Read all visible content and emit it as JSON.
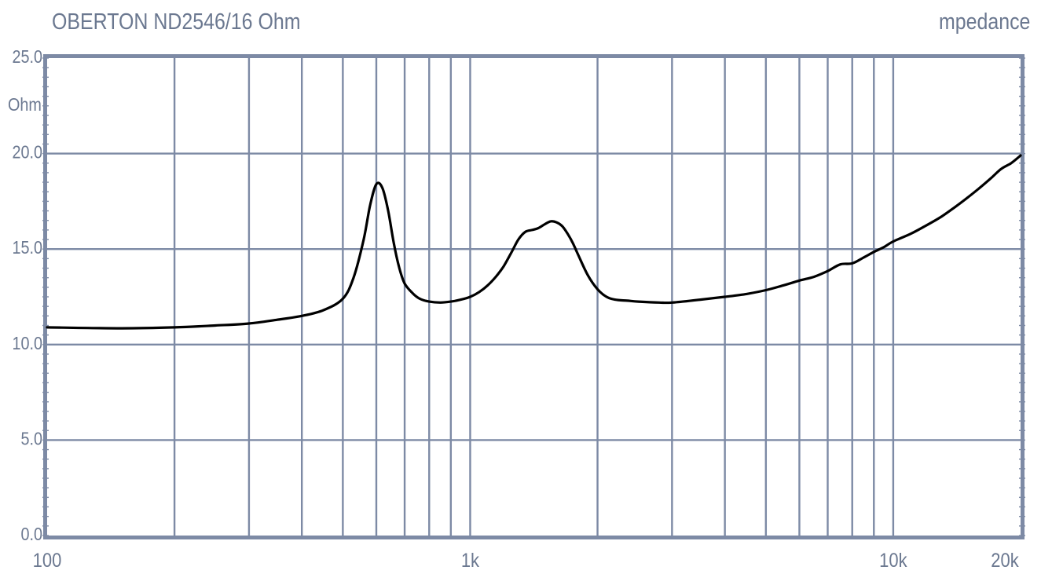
{
  "title": "OBERTON ND2546/16 Ohm",
  "brand": "mpedance",
  "colors": {
    "frame": "#7d8aa5",
    "grid": "#7d8aa5",
    "curve": "#000000",
    "text": "#6b7890"
  },
  "chart_data": {
    "type": "line",
    "title": "OBERTON ND2546/16 Ohm",
    "xlabel": "",
    "ylabel": "Ohm",
    "x_scale": "log",
    "xlim": [
      100,
      20000
    ],
    "ylim": [
      0,
      25
    ],
    "grid": true,
    "y_ticks": [
      {
        "value": 0,
        "label": "0.0"
      },
      {
        "value": 5,
        "label": "5.0"
      },
      {
        "value": 10,
        "label": "10.0"
      },
      {
        "value": 15,
        "label": "15.0"
      },
      {
        "value": 20,
        "label": "20.0"
      },
      {
        "value": 25,
        "label": "25.0"
      }
    ],
    "x_ticks": [
      {
        "value": 100,
        "label": "100"
      },
      {
        "value": 1000,
        "label": "1k"
      },
      {
        "value": 10000,
        "label": "10k"
      },
      {
        "value": 20000,
        "label": "20k"
      }
    ],
    "x_gridlines": [
      200,
      300,
      400,
      500,
      600,
      700,
      800,
      900,
      1000,
      2000,
      3000,
      4000,
      5000,
      6000,
      7000,
      8000,
      9000,
      10000
    ],
    "series": [
      {
        "x": [
          100,
          150,
          200,
          250,
          300,
          350,
          400,
          450,
          500,
          530,
          560,
          580,
          600,
          620,
          640,
          660,
          680,
          700,
          730,
          760,
          800,
          850,
          900,
          950,
          1000,
          1050,
          1100,
          1150,
          1200,
          1250,
          1300,
          1350,
          1400,
          1450,
          1500,
          1550,
          1600,
          1650,
          1700,
          1750,
          1800,
          1900,
          2000,
          2100,
          2200,
          2350,
          2500,
          2800,
          3000,
          3500,
          4000,
          4500,
          5000,
          5500,
          6000,
          6500,
          7000,
          7500,
          8000,
          8500,
          9000,
          9500,
          10000,
          11000,
          12000,
          13000,
          14000,
          15000,
          16000,
          17000,
          18000,
          19000,
          20000
        ],
        "y": [
          10.9,
          10.85,
          10.9,
          11.0,
          11.1,
          11.3,
          11.5,
          11.8,
          12.4,
          13.5,
          15.5,
          17.3,
          18.4,
          18.2,
          17.0,
          15.3,
          14.0,
          13.2,
          12.7,
          12.4,
          12.25,
          12.2,
          12.25,
          12.35,
          12.5,
          12.75,
          13.1,
          13.55,
          14.1,
          14.8,
          15.5,
          15.9,
          16.0,
          16.1,
          16.3,
          16.45,
          16.4,
          16.2,
          15.8,
          15.3,
          14.7,
          13.6,
          12.9,
          12.5,
          12.35,
          12.3,
          12.25,
          12.2,
          12.2,
          12.35,
          12.5,
          12.65,
          12.85,
          13.1,
          13.35,
          13.55,
          13.85,
          14.2,
          14.25,
          14.55,
          14.85,
          15.1,
          15.4,
          15.8,
          16.25,
          16.7,
          17.2,
          17.7,
          18.2,
          18.7,
          19.2,
          19.5,
          19.9
        ]
      }
    ]
  }
}
